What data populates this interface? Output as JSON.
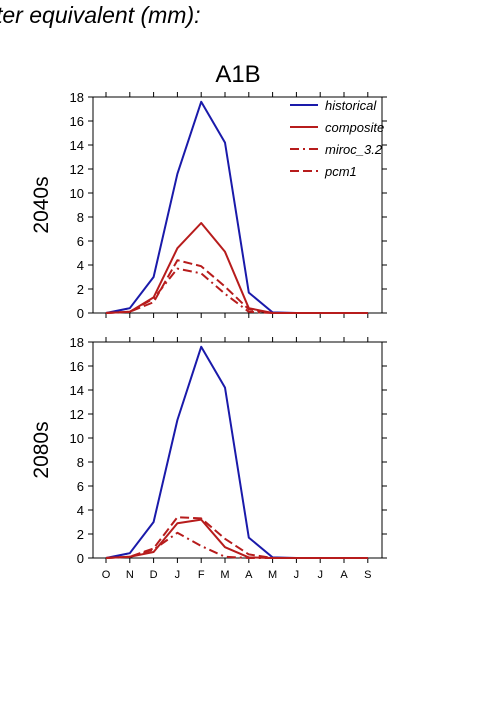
{
  "page": {
    "title": "ter equivalent (mm):"
  },
  "chart_data": {
    "type": "line",
    "scenario": "A1B",
    "x": [
      "O",
      "N",
      "D",
      "J",
      "F",
      "M",
      "A",
      "M",
      "J",
      "J",
      "A",
      "S"
    ],
    "ylim": [
      0,
      18
    ],
    "yticks": [
      0,
      2,
      4,
      6,
      8,
      10,
      12,
      14,
      16,
      18
    ],
    "colors": {
      "historical": "#1a1aaa",
      "scenario": "#b71c1c"
    },
    "panels": [
      {
        "row_label": "2040s",
        "series": [
          {
            "name": "historical",
            "style": "solid",
            "color": "#1a1aaa",
            "values": [
              0,
              0.4,
              3.0,
              11.6,
              17.6,
              14.2,
              1.7,
              0.05,
              0,
              0,
              0,
              0
            ]
          },
          {
            "name": "composite",
            "style": "solid",
            "color": "#b71c1c",
            "values": [
              0,
              0.1,
              1.3,
              5.4,
              7.5,
              5.1,
              0.4,
              0,
              0,
              0,
              0,
              0
            ]
          },
          {
            "name": "miroc_3.2",
            "style": "dashdot",
            "color": "#b71c1c",
            "values": [
              0,
              0.1,
              1.2,
              3.7,
              3.3,
              1.6,
              0.1,
              0,
              0,
              0,
              0,
              0
            ]
          },
          {
            "name": "pcm1",
            "style": "dashed",
            "color": "#b71c1c",
            "values": [
              0,
              0.1,
              0.9,
              4.4,
              3.9,
              2.2,
              0.3,
              0,
              0,
              0,
              0,
              0
            ]
          }
        ]
      },
      {
        "row_label": "2080s",
        "series": [
          {
            "name": "historical",
            "style": "solid",
            "color": "#1a1aaa",
            "values": [
              0,
              0.4,
              3.0,
              11.5,
              17.6,
              14.2,
              1.7,
              0.05,
              0,
              0,
              0,
              0
            ]
          },
          {
            "name": "composite",
            "style": "solid",
            "color": "#b71c1c",
            "values": [
              0,
              0.1,
              0.5,
              2.9,
              3.2,
              0.9,
              0.05,
              0,
              0,
              0,
              0,
              0
            ]
          },
          {
            "name": "miroc_3.2",
            "style": "dashdot",
            "color": "#b71c1c",
            "values": [
              0,
              0.1,
              0.7,
              2.1,
              1.0,
              0.1,
              0,
              0,
              0,
              0,
              0,
              0
            ]
          },
          {
            "name": "pcm1",
            "style": "dashed",
            "color": "#b71c1c",
            "values": [
              0,
              0.1,
              0.8,
              3.4,
              3.3,
              1.6,
              0.3,
              0,
              0,
              0,
              0,
              0
            ]
          }
        ]
      }
    ],
    "legend": {
      "position": "top-right",
      "entries": [
        {
          "label": "historical",
          "style": "solid",
          "color": "#1a1aaa"
        },
        {
          "label": "composite",
          "style": "solid",
          "color": "#b71c1c"
        },
        {
          "label": "miroc_3.2",
          "style": "dashdot",
          "color": "#b71c1c"
        },
        {
          "label": "pcm1",
          "style": "dashed",
          "color": "#b71c1c"
        }
      ]
    }
  }
}
